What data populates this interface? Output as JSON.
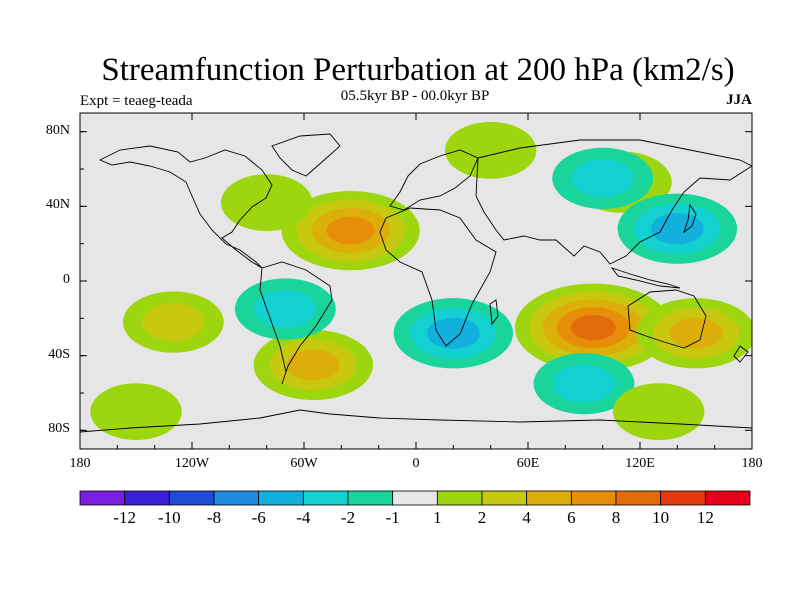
{
  "figure": {
    "title": "Streamfunction Perturbation at 200 hPa (km2/s)",
    "left_string": "Expt = teaeg-teada",
    "center_string": "05.5kyr BP - 00.0kyr BP",
    "right_string": "JJA"
  },
  "axes": {
    "lat_labels": [
      "80N",
      "40N",
      "0",
      "40S",
      "80S"
    ],
    "lon_labels": [
      "180",
      "120W",
      "60W",
      "0",
      "60E",
      "120E",
      "180"
    ]
  },
  "colorbar": {
    "colors": [
      "#7a1fe0",
      "#3a1fd8",
      "#1f4bd6",
      "#1e8ae0",
      "#12b0dc",
      "#14d1d1",
      "#19d49b",
      "#e6e6e6",
      "#9dd60f",
      "#c9c811",
      "#dcae0a",
      "#e68e0a",
      "#e06c0c",
      "#e33a10",
      "#e6001c"
    ],
    "labels": [
      "-12",
      "-10",
      "-8",
      "-6",
      "-4",
      "-2",
      "-1",
      "1",
      "2",
      "4",
      "6",
      "8",
      "10",
      "12"
    ]
  },
  "chart_data": {
    "type": "heatmap",
    "title": "Streamfunction Perturbation at 200 hPa (km2/s)",
    "subtitle": "05.5kyr BP - 00.0kyr BP",
    "season": "JJA",
    "xlim": [
      -180,
      180
    ],
    "ylim": [
      -90,
      90
    ],
    "levels": [
      -12,
      -10,
      -8,
      -6,
      -4,
      -2,
      -1,
      1,
      2,
      4,
      6,
      8,
      10,
      12
    ],
    "features": [
      {
        "sign": "positive",
        "lon": -35,
        "lat": 27,
        "max_level": 6
      },
      {
        "sign": "positive",
        "lon": -80,
        "lat": 42,
        "max_level": 1
      },
      {
        "sign": "positive",
        "lon": -130,
        "lat": -22,
        "max_level": 2
      },
      {
        "sign": "positive",
        "lon": -55,
        "lat": -45,
        "max_level": 4
      },
      {
        "sign": "positive",
        "lon": 95,
        "lat": -25,
        "max_level": 8
      },
      {
        "sign": "positive",
        "lon": 150,
        "lat": -28,
        "max_level": 4
      },
      {
        "sign": "positive",
        "lon": 40,
        "lat": 70,
        "max_level": 1
      },
      {
        "sign": "positive",
        "lon": 110,
        "lat": 53,
        "max_level": 2
      },
      {
        "sign": "negative",
        "lon": 140,
        "lat": 28,
        "max_level": -4
      },
      {
        "sign": "negative",
        "lon": 20,
        "lat": -28,
        "max_level": -4
      },
      {
        "sign": "negative",
        "lon": -70,
        "lat": -15,
        "max_level": -2
      },
      {
        "sign": "negative",
        "lon": 100,
        "lat": 55,
        "max_level": -2
      },
      {
        "sign": "negative",
        "lon": 90,
        "lat": -55,
        "max_level": -2
      },
      {
        "sign": "positive",
        "lon": 130,
        "lat": -70,
        "max_level": 1
      },
      {
        "sign": "positive",
        "lon": -150,
        "lat": -70,
        "max_level": 1
      }
    ]
  }
}
